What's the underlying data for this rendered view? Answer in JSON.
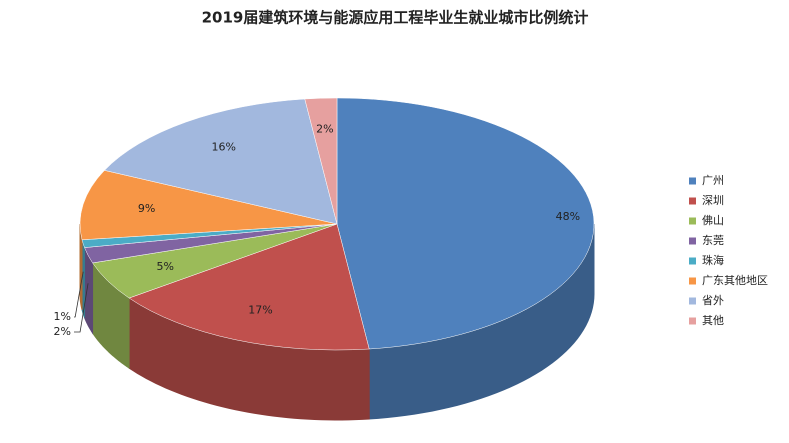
{
  "chart_data": {
    "type": "pie3d",
    "title": "2019届建筑环境与能源应用工程毕业生就业城市比例统计",
    "categories": [
      "广州",
      "深圳",
      "佛山",
      "东莞",
      "珠海",
      "广东其他地区",
      "省外",
      "其他"
    ],
    "values": [
      48,
      17,
      5,
      2,
      1,
      9,
      16,
      2
    ],
    "value_labels": [
      "48%",
      "17%",
      "5%",
      "2%",
      "1%",
      "9%",
      "16%",
      "2%"
    ],
    "colors": [
      "#4f81bd",
      "#c0504d",
      "#9bbb59",
      "#8064a2",
      "#4bacc6",
      "#f79646",
      "#a2b8de",
      "#e6a09f"
    ],
    "legend": "right"
  }
}
